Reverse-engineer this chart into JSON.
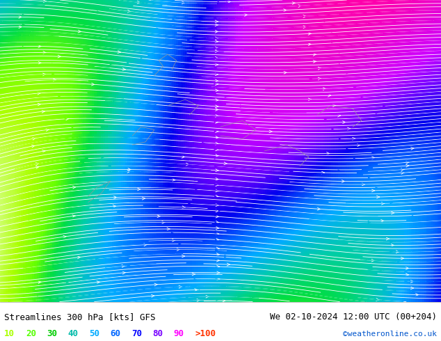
{
  "title_left": "Streamlines 300 hPa [kts] GFS",
  "title_right": "We 02-10-2024 12:00 UTC (00+204)",
  "credit": "©weatheronline.co.uk",
  "legend_values": [
    "10",
    "20",
    "30",
    "40",
    "50",
    "60",
    "70",
    "80",
    "90",
    ">100"
  ],
  "legend_colors": [
    "#aaff00",
    "#00ff00",
    "#00dd00",
    "#00ccaa",
    "#00aaff",
    "#0055ff",
    "#0000ff",
    "#aa00ff",
    "#ff00ff",
    "#ff0000"
  ],
  "speed_colors": {
    "10": "#ccff33",
    "20": "#88ff00",
    "30": "#00ee00",
    "40": "#00cccc",
    "50": "#00aaff",
    "60": "#0066ff",
    "70": "#0000ff",
    "80": "#aa00ff",
    "90": "#ff00ff",
    "100": "#ff0000"
  },
  "bg_color": "#ccff99",
  "land_color": "#ddffaa",
  "sea_color": "#aaeeff",
  "fig_width": 6.34,
  "fig_height": 4.9,
  "dpi": 100,
  "bottom_bar_color": "#ffffff",
  "title_fontsize": 9,
  "credit_fontsize": 8
}
